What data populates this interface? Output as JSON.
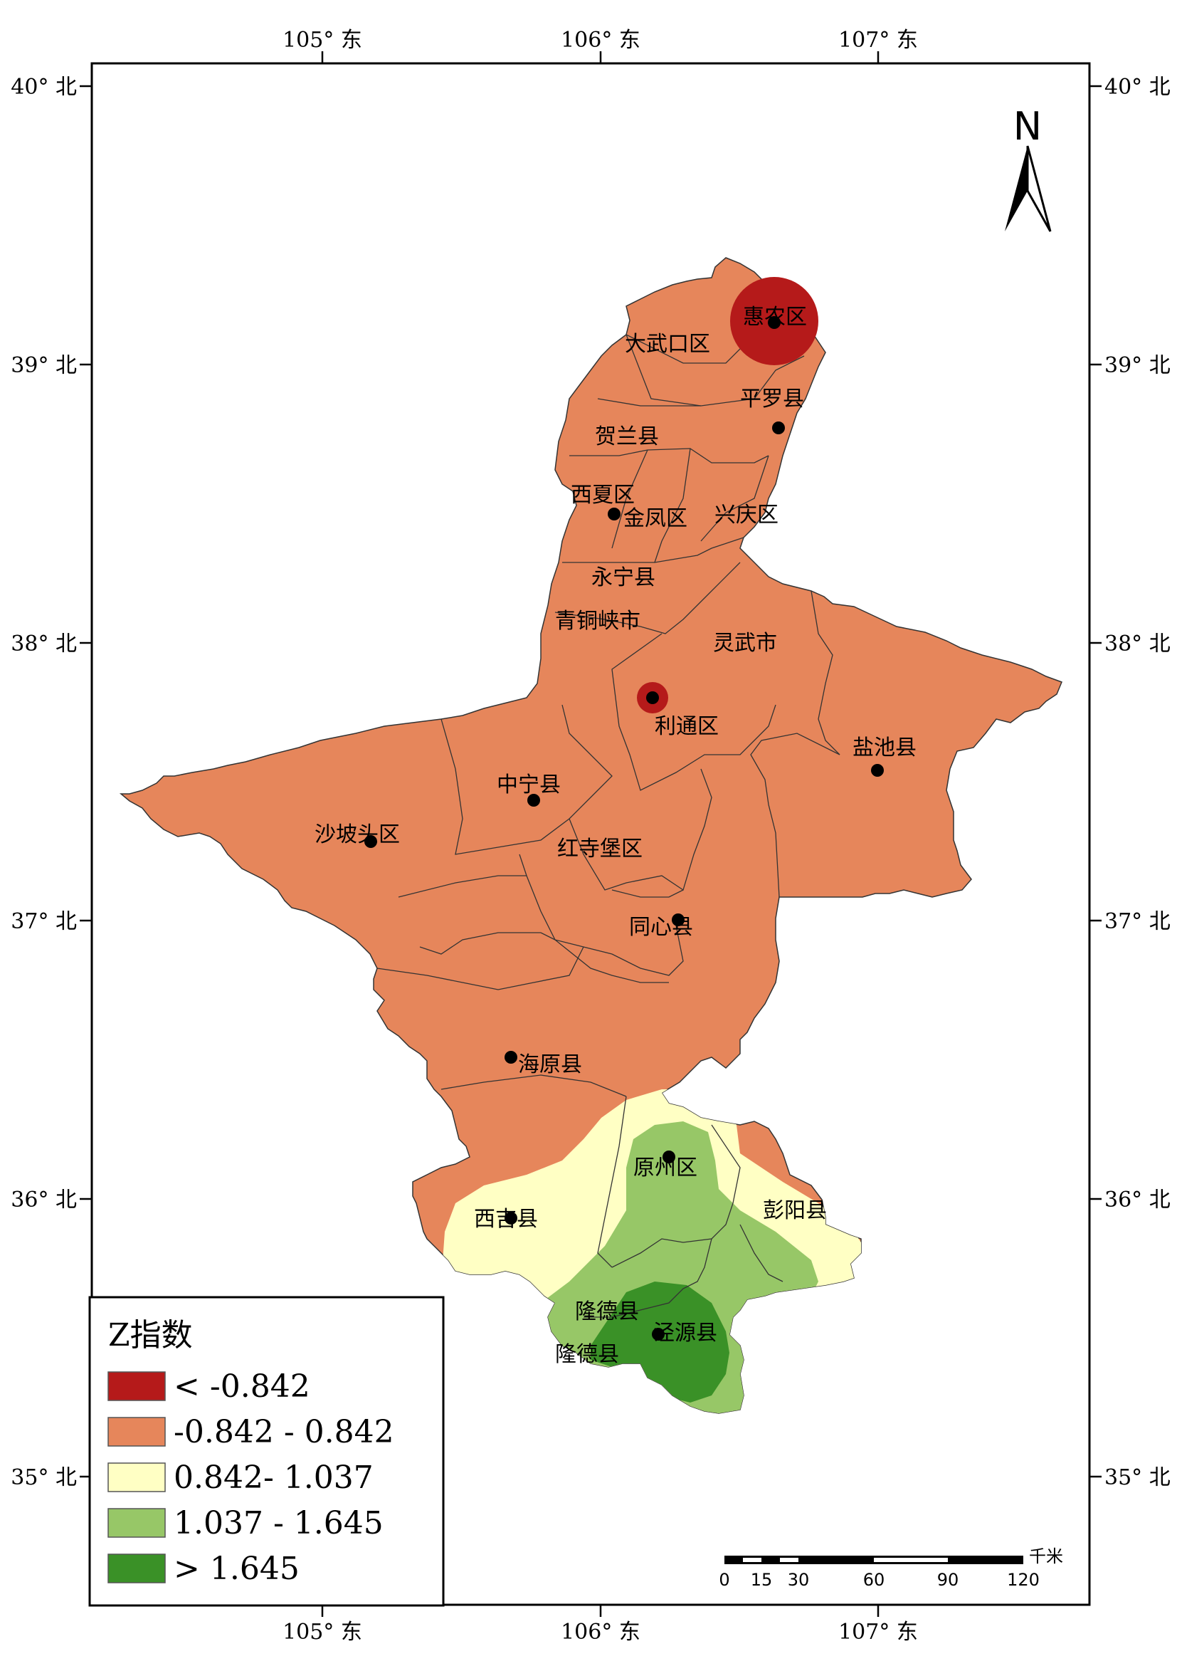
{
  "map": {
    "coordinates": {
      "top_labels": [
        "105° 东",
        "106° 东",
        "107° 东"
      ],
      "bottom_labels": [
        "105° 东",
        "106° 东",
        "107° 东"
      ],
      "left_labels": [
        "40° 北",
        "39° 北",
        "38° 北",
        "37° 北",
        "36° 北",
        "35° 北"
      ],
      "right_labels": [
        "40° 北",
        "39° 北",
        "38° 北",
        "37° 北",
        "36° 北",
        "35° 北"
      ]
    },
    "places": [
      "惠农区",
      "大武口区",
      "平罗县",
      "贺兰县",
      "西夏区",
      "金凤区",
      "兴庆区",
      "永宁县",
      "青铜峡市",
      "灵武市",
      "利通区",
      "盐池县",
      "中宁县",
      "沙坡头区",
      "红寺堡区",
      "同心县",
      "海原县",
      "原州区",
      "彭阳县",
      "西吉县",
      "隆德县",
      "泾源县",
      "隆德县"
    ],
    "north_arrow": {
      "letter": "N",
      "icon": "north-arrow-icon"
    },
    "scale_bar": {
      "unit": "千米",
      "labels": [
        "0",
        "15",
        "30",
        "60",
        "90",
        "120"
      ]
    },
    "legend": {
      "title": "Z指数",
      "items": [
        {
          "label": "< -0.842",
          "color": "#B51A1A"
        },
        {
          "label": "-0.842 - 0.842",
          "color": "#E6865B"
        },
        {
          "label": "0.842- 1.037",
          "color": "#FFFFC4"
        },
        {
          "label": "1.037 - 1.645",
          "color": "#97C767"
        },
        {
          "label": "> 1.645",
          "color": "#3A9127"
        }
      ]
    }
  }
}
